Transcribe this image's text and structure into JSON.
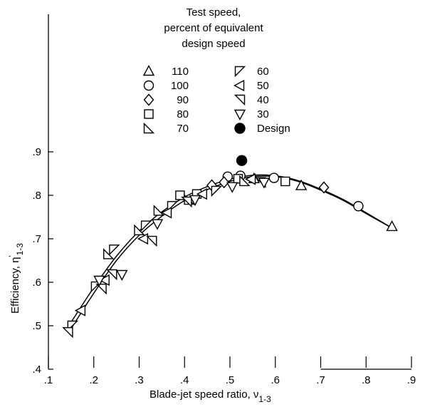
{
  "chart_data": {
    "type": "scatter",
    "xlabel": "Blade-jet speed ratio, ν",
    "xlabel_sub": "1-3",
    "ylabel": "Efficiency, η",
    "ylabel_sup": "'",
    "ylabel_sub": "1-3",
    "xlim": [
      0.1,
      0.9
    ],
    "ylim": [
      0.4,
      0.9
    ],
    "xticks": [
      ".1",
      ".2",
      ".3",
      ".4",
      ".5",
      ".6",
      ".7",
      ".8",
      ".9"
    ],
    "yticks": [
      ".4",
      ".5",
      ".6",
      ".7",
      ".8",
      ".9"
    ],
    "grid": false,
    "legend": {
      "title_lines": [
        "Test speed,",
        "percent of equivalent",
        "design speed"
      ],
      "placement": "top-center",
      "entries": [
        {
          "label": "110",
          "marker": "triangle-up"
        },
        {
          "label": "100",
          "marker": "circle"
        },
        {
          "label": "90",
          "marker": "diamond"
        },
        {
          "label": "80",
          "marker": "square"
        },
        {
          "label": "70",
          "marker": "right-triangle-ll"
        },
        {
          "label": "60",
          "marker": "flag-up"
        },
        {
          "label": "50",
          "marker": "triangle-left"
        },
        {
          "label": "40",
          "marker": "right-triangle-ur"
        },
        {
          "label": "30",
          "marker": "triangle-down"
        },
        {
          "label": "Design",
          "marker": "filled-circle"
        }
      ]
    },
    "series": [
      {
        "name": "110",
        "marker": "triangle-up",
        "points": [
          [
            0.553,
            0.838
          ],
          [
            0.657,
            0.822
          ],
          [
            0.857,
            0.728
          ]
        ]
      },
      {
        "name": "100",
        "marker": "circle",
        "points": [
          [
            0.495,
            0.843
          ],
          [
            0.523,
            0.845
          ],
          [
            0.597,
            0.84
          ],
          [
            0.783,
            0.775
          ]
        ]
      },
      {
        "name": "90",
        "marker": "diamond",
        "points": [
          [
            0.46,
            0.823
          ],
          [
            0.487,
            0.83
          ],
          [
            0.707,
            0.818
          ]
        ]
      },
      {
        "name": "80",
        "marker": "square",
        "points": [
          [
            0.39,
            0.8
          ],
          [
            0.427,
            0.803
          ],
          [
            0.518,
            0.838
          ],
          [
            0.622,
            0.832
          ]
        ]
      },
      {
        "name": "70",
        "marker": "right-triangle-ll",
        "points": [
          [
            0.232,
            0.665
          ],
          [
            0.3,
            0.72
          ],
          [
            0.343,
            0.765
          ],
          [
            0.41,
            0.79
          ],
          [
            0.532,
            0.833
          ]
        ]
      },
      {
        "name": "60",
        "marker": "flag-up",
        "points": [
          [
            0.153,
            0.5
          ],
          [
            0.205,
            0.59
          ],
          [
            0.245,
            0.675
          ],
          [
            0.315,
            0.73
          ],
          [
            0.373,
            0.775
          ],
          [
            0.47,
            0.81
          ]
        ]
      },
      {
        "name": "50",
        "marker": "triangle-left",
        "points": [
          [
            0.172,
            0.535
          ],
          [
            0.225,
            0.605
          ],
          [
            0.31,
            0.7
          ],
          [
            0.362,
            0.76
          ],
          [
            0.44,
            0.803
          ],
          [
            0.547,
            0.837
          ]
        ]
      },
      {
        "name": "40",
        "marker": "right-triangle-ur",
        "points": [
          [
            0.143,
            0.485
          ],
          [
            0.217,
            0.585
          ],
          [
            0.24,
            0.618
          ],
          [
            0.328,
            0.695
          ],
          [
            0.405,
            0.785
          ],
          [
            0.568,
            0.83
          ]
        ]
      },
      {
        "name": "30",
        "marker": "triangle-down",
        "points": [
          [
            0.212,
            0.605
          ],
          [
            0.262,
            0.618
          ],
          [
            0.34,
            0.735
          ],
          [
            0.423,
            0.79
          ],
          [
            0.505,
            0.82
          ],
          [
            0.575,
            0.83
          ]
        ]
      },
      {
        "name": "Design",
        "marker": "filled-circle",
        "points": [
          [
            0.526,
            0.88
          ]
        ]
      }
    ],
    "curves": [
      {
        "points": [
          [
            0.145,
            0.485
          ],
          [
            0.2,
            0.575
          ],
          [
            0.25,
            0.65
          ],
          [
            0.3,
            0.708
          ],
          [
            0.35,
            0.752
          ],
          [
            0.4,
            0.788
          ],
          [
            0.45,
            0.813
          ],
          [
            0.5,
            0.832
          ],
          [
            0.55,
            0.843
          ],
          [
            0.6,
            0.843
          ],
          [
            0.65,
            0.832
          ],
          [
            0.7,
            0.812
          ],
          [
            0.75,
            0.788
          ],
          [
            0.8,
            0.758
          ],
          [
            0.857,
            0.725
          ]
        ]
      },
      {
        "points": [
          [
            0.145,
            0.5
          ],
          [
            0.2,
            0.588
          ],
          [
            0.25,
            0.66
          ],
          [
            0.3,
            0.718
          ],
          [
            0.35,
            0.762
          ],
          [
            0.4,
            0.796
          ],
          [
            0.45,
            0.82
          ],
          [
            0.5,
            0.837
          ],
          [
            0.55,
            0.846
          ],
          [
            0.6,
            0.845
          ],
          [
            0.65,
            0.834
          ],
          [
            0.7,
            0.814
          ],
          [
            0.75,
            0.79
          ],
          [
            0.8,
            0.76
          ],
          [
            0.857,
            0.725
          ]
        ]
      }
    ]
  }
}
